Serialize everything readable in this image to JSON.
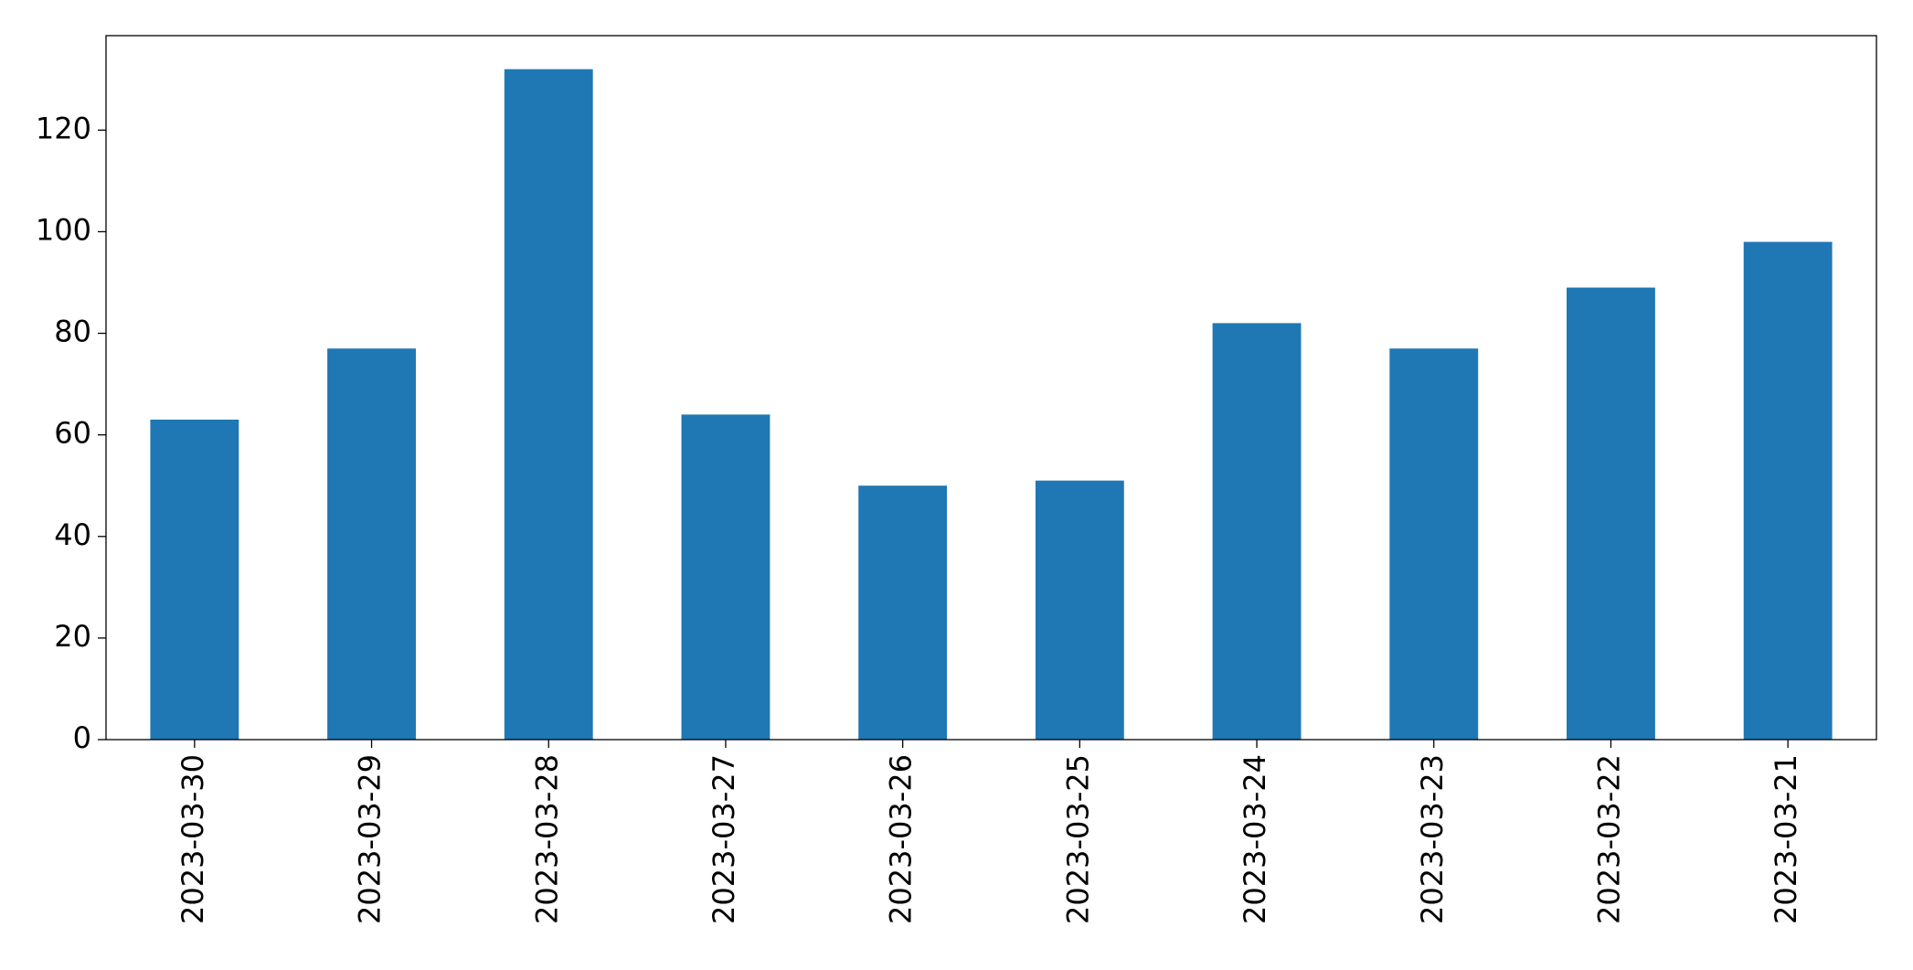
{
  "chart_data": {
    "type": "bar",
    "categories": [
      "2023-03-30",
      "2023-03-29",
      "2023-03-28",
      "2023-03-27",
      "2023-03-26",
      "2023-03-25",
      "2023-03-24",
      "2023-03-23",
      "2023-03-22",
      "2023-03-21"
    ],
    "values": [
      63,
      77,
      132,
      64,
      50,
      51,
      82,
      77,
      89,
      98
    ],
    "color": "#1f77b4",
    "ylim": [
      0,
      138.6
    ],
    "yticks": [
      0,
      20,
      40,
      60,
      80,
      100,
      120
    ],
    "grid": false
  }
}
